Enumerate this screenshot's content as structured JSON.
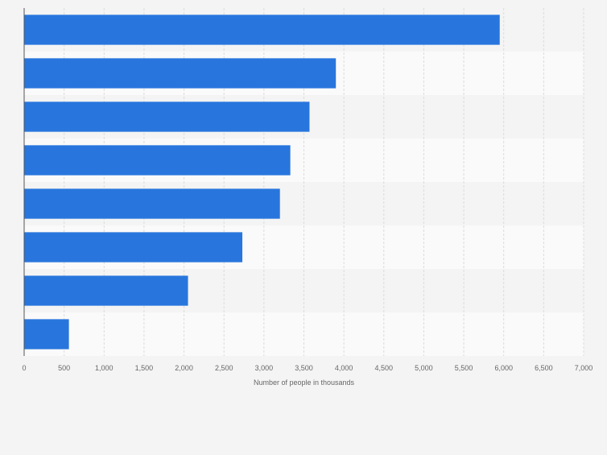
{
  "chart_data": {
    "type": "bar",
    "orientation": "horizontal",
    "categories": [
      "",
      "",
      "",
      "",
      "",
      "",
      "",
      ""
    ],
    "values": [
      5950,
      3900,
      3570,
      3330,
      3200,
      2730,
      2050,
      560
    ],
    "xlabel": "Number of people in thousands",
    "ylabel": "",
    "xlim": [
      0,
      7000
    ],
    "xticks": [
      0,
      500,
      1000,
      1500,
      2000,
      2500,
      3000,
      3500,
      4000,
      4500,
      5000,
      5500,
      6000,
      6500,
      7000
    ],
    "xtick_labels": [
      "0",
      "500",
      "1,000",
      "1,500",
      "2,000",
      "2,500",
      "3,000",
      "3,500",
      "4,000",
      "4,500",
      "5,000",
      "5,500",
      "6,000",
      "6,500",
      "7,000"
    ],
    "grid": true,
    "legend": "none",
    "colors": {
      "bar": "#2876dd",
      "band_light": "#fafafa",
      "band_dark": "#f4f4f4",
      "grid": "#dcdcdc",
      "axis": "#555555",
      "tick_text": "#666666"
    }
  }
}
